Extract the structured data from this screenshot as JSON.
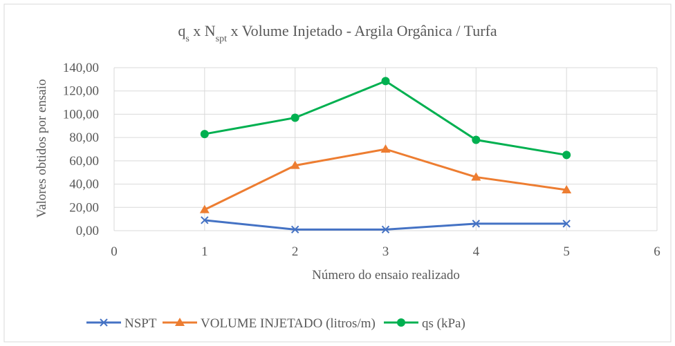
{
  "chart_data": {
    "type": "line",
    "title": [
      "q",
      "s",
      " x N",
      "spt",
      " x Volume Injetado - Argila Orgânica / Turfa"
    ],
    "title_subscript": [
      false,
      true,
      false,
      true,
      false
    ],
    "xlabel": "Número do ensaio realizado",
    "ylabel": "Valores obtidos por ensaio",
    "x": [
      1,
      2,
      3,
      4,
      5
    ],
    "xlim": [
      0,
      6
    ],
    "xticks": [
      0,
      1,
      2,
      3,
      4,
      5,
      6
    ],
    "ylim": [
      0,
      140
    ],
    "yticks": [
      {
        "value": 0,
        "label": "0,00"
      },
      {
        "value": 20,
        "label": "20,00"
      },
      {
        "value": 40,
        "label": "40,00"
      },
      {
        "value": 60,
        "label": "60,00"
      },
      {
        "value": 80,
        "label": "80,00"
      },
      {
        "value": 100,
        "label": "100,00"
      },
      {
        "value": 120,
        "label": "120,00"
      },
      {
        "value": 140,
        "label": "140,00"
      }
    ],
    "grid": true,
    "legend": "bottom",
    "series": [
      {
        "name": "NSPT",
        "color": "#4472c4",
        "marker": "x",
        "values": [
          9,
          1,
          1,
          6,
          6
        ]
      },
      {
        "name": "VOLUME INJETADO (litros/m)",
        "color": "#ed7d31",
        "marker": "triangle",
        "values": [
          18,
          56,
          70,
          46,
          35
        ]
      },
      {
        "name": "qs (kPa)",
        "color": "#00b050",
        "marker": "circle",
        "values": [
          83,
          97,
          128.5,
          78,
          65
        ]
      }
    ]
  }
}
